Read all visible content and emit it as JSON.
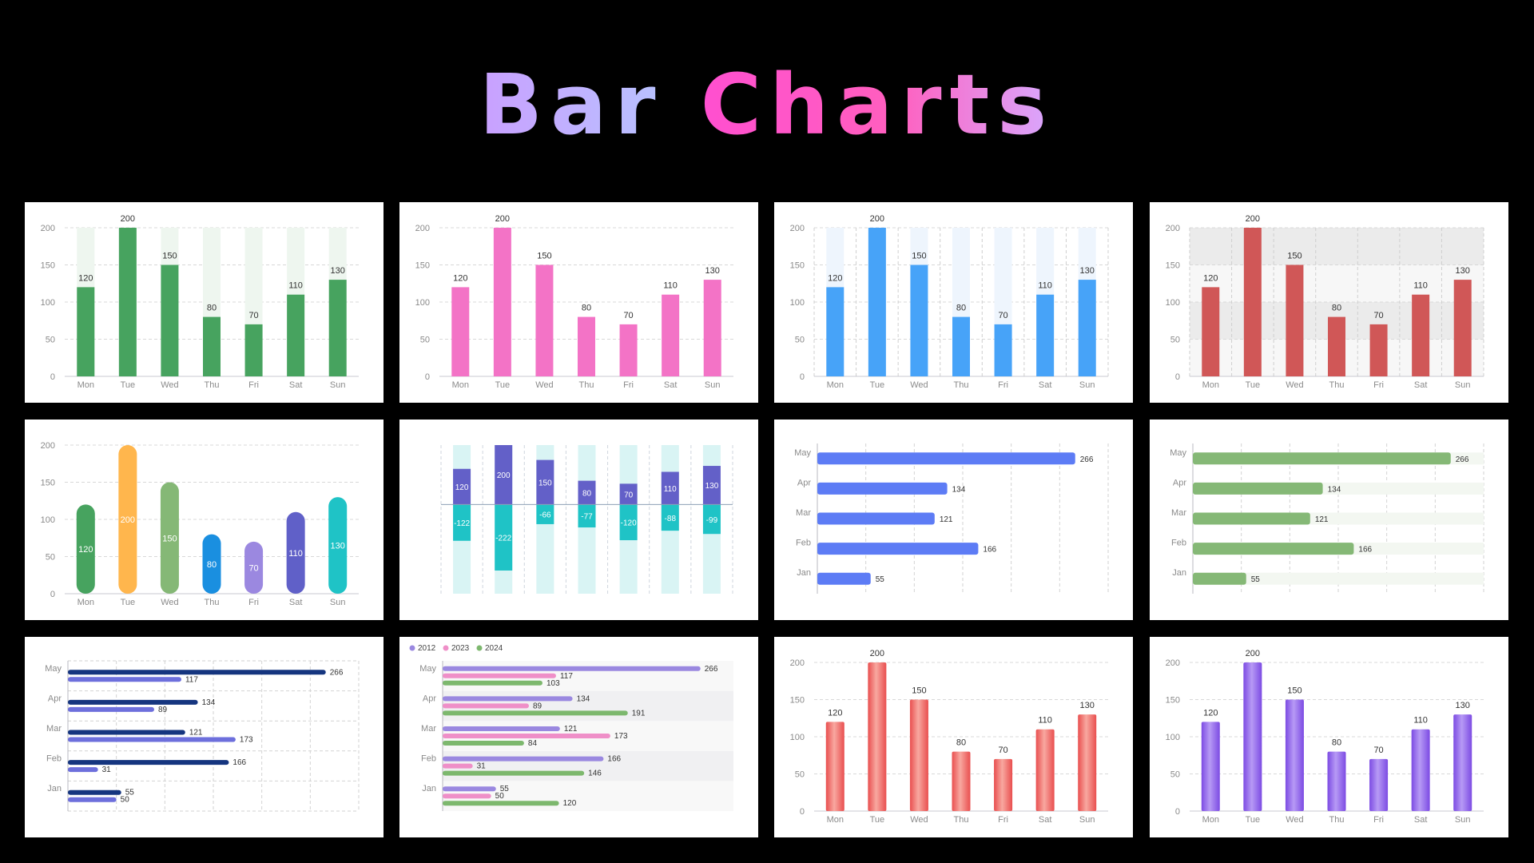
{
  "title": {
    "word1": "Bar",
    "word2": "Charts"
  },
  "colors": {
    "green": "#47a35f",
    "pink": "#f373c6",
    "blue": "#47a3f8",
    "red": "#d05757",
    "navy": "#15357f",
    "indigo": "#6d6fdc",
    "barblue": "#5d7cf5",
    "sage": "#85b876",
    "cyanlight": "#d9f4f4",
    "purple": "#7c4be3",
    "redgrad": "#e94f4f"
  },
  "chart_data": [
    {
      "type": "bar",
      "style": "background-track",
      "categories": [
        "Mon",
        "Tue",
        "Wed",
        "Thu",
        "Fri",
        "Sat",
        "Sun"
      ],
      "values": [
        120,
        200,
        150,
        80,
        70,
        110,
        130
      ],
      "yticks": [
        0,
        50,
        100,
        150,
        200
      ],
      "ylim": [
        0,
        200
      ],
      "grid": true,
      "color": "#47a35f"
    },
    {
      "type": "bar",
      "style": "plain",
      "categories": [
        "Mon",
        "Tue",
        "Wed",
        "Thu",
        "Fri",
        "Sat",
        "Sun"
      ],
      "values": [
        120,
        200,
        150,
        80,
        70,
        110,
        130
      ],
      "yticks": [
        0,
        50,
        100,
        150,
        200
      ],
      "ylim": [
        0,
        200
      ],
      "grid": true,
      "color": "#f373c6"
    },
    {
      "type": "bar",
      "style": "track-vertical-grid",
      "categories": [
        "Mon",
        "Tue",
        "Wed",
        "Thu",
        "Fri",
        "Sat",
        "Sun"
      ],
      "values": [
        120,
        200,
        150,
        80,
        70,
        110,
        130
      ],
      "yticks": [
        0,
        50,
        100,
        150,
        200
      ],
      "ylim": [
        0,
        200
      ],
      "grid": true,
      "color": "#47a3f8"
    },
    {
      "type": "bar",
      "style": "split-area",
      "categories": [
        "Mon",
        "Tue",
        "Wed",
        "Thu",
        "Fri",
        "Sat",
        "Sun"
      ],
      "values": [
        120,
        200,
        150,
        80,
        70,
        110,
        130
      ],
      "yticks": [
        0,
        50,
        100,
        150,
        200
      ],
      "ylim": [
        0,
        200
      ],
      "grid": true,
      "color": "#d05757"
    },
    {
      "type": "bar",
      "style": "rounded-multicolor",
      "categories": [
        "Mon",
        "Tue",
        "Wed",
        "Thu",
        "Fri",
        "Sat",
        "Sun"
      ],
      "values": [
        120,
        200,
        150,
        80,
        70,
        110,
        130
      ],
      "colors": [
        "#47a35f",
        "#ffb64d",
        "#85b876",
        "#1a8fe0",
        "#9b88e0",
        "#6060c8",
        "#1fc3c6"
      ],
      "yticks": [
        0,
        50,
        100,
        150,
        200
      ],
      "ylim": [
        0,
        200
      ],
      "grid": true
    },
    {
      "type": "bar",
      "style": "positive-negative",
      "categories": [
        "Mon",
        "Tue",
        "Wed",
        "Thu",
        "Fri",
        "Sat",
        "Sun"
      ],
      "series": [
        {
          "values": [
            120,
            200,
            150,
            80,
            70,
            110,
            130
          ]
        },
        {
          "values": [
            -122,
            -222,
            -66,
            -77,
            -120,
            -88,
            -99
          ]
        }
      ],
      "ylim": [
        -300,
        200
      ],
      "colors": [
        "#6360c8",
        "#1fc3c6"
      ]
    },
    {
      "type": "bar",
      "orientation": "horizontal",
      "style": "plain",
      "categories": [
        "Jan",
        "Feb",
        "Mar",
        "Apr",
        "May"
      ],
      "values": [
        55,
        166,
        121,
        134,
        266
      ],
      "xlim": [
        0,
        300
      ],
      "grid": true,
      "color": "#5d7cf5"
    },
    {
      "type": "bar",
      "orientation": "horizontal",
      "style": "background-track",
      "categories": [
        "Jan",
        "Feb",
        "Mar",
        "Apr",
        "May"
      ],
      "values": [
        55,
        166,
        121,
        134,
        266
      ],
      "xlim": [
        0,
        300
      ],
      "grid": true,
      "color": "#85b876"
    },
    {
      "type": "bar",
      "orientation": "horizontal",
      "style": "grouped",
      "categories": [
        "Jan",
        "Feb",
        "Mar",
        "Apr",
        "May"
      ],
      "series": [
        {
          "values": [
            55,
            166,
            121,
            134,
            266
          ]
        },
        {
          "values": [
            50,
            31,
            173,
            89,
            117
          ]
        }
      ],
      "xlim": [
        0,
        300
      ],
      "grid": true,
      "colors": [
        "#15357f",
        "#6d6fdc"
      ]
    },
    {
      "type": "bar",
      "orientation": "horizontal",
      "style": "grouped-legend",
      "categories": [
        "Jan",
        "Feb",
        "Mar",
        "Apr",
        "May"
      ],
      "series": [
        {
          "name": "2012",
          "values": [
            55,
            166,
            121,
            134,
            266
          ]
        },
        {
          "name": "2023",
          "values": [
            50,
            31,
            173,
            89,
            117
          ]
        },
        {
          "name": "2024",
          "values": [
            120,
            146,
            84,
            191,
            103
          ]
        }
      ],
      "xlim": [
        0,
        300
      ],
      "legend": "top-left",
      "colors": [
        "#9a88e0",
        "#ef8fc8",
        "#7db86e"
      ]
    },
    {
      "type": "bar",
      "style": "cylinder",
      "categories": [
        "Mon",
        "Tue",
        "Wed",
        "Thu",
        "Fri",
        "Sat",
        "Sun"
      ],
      "values": [
        120,
        200,
        150,
        80,
        70,
        110,
        130
      ],
      "yticks": [
        0,
        50,
        100,
        150,
        200
      ],
      "ylim": [
        0,
        200
      ],
      "grid": true,
      "color": "#e94f4f"
    },
    {
      "type": "bar",
      "style": "cylinder",
      "categories": [
        "Mon",
        "Tue",
        "Wed",
        "Thu",
        "Fri",
        "Sat",
        "Sun"
      ],
      "values": [
        120,
        200,
        150,
        80,
        70,
        110,
        130
      ],
      "yticks": [
        0,
        50,
        100,
        150,
        200
      ],
      "ylim": [
        0,
        200
      ],
      "grid": true,
      "color": "#7c4be3"
    }
  ]
}
